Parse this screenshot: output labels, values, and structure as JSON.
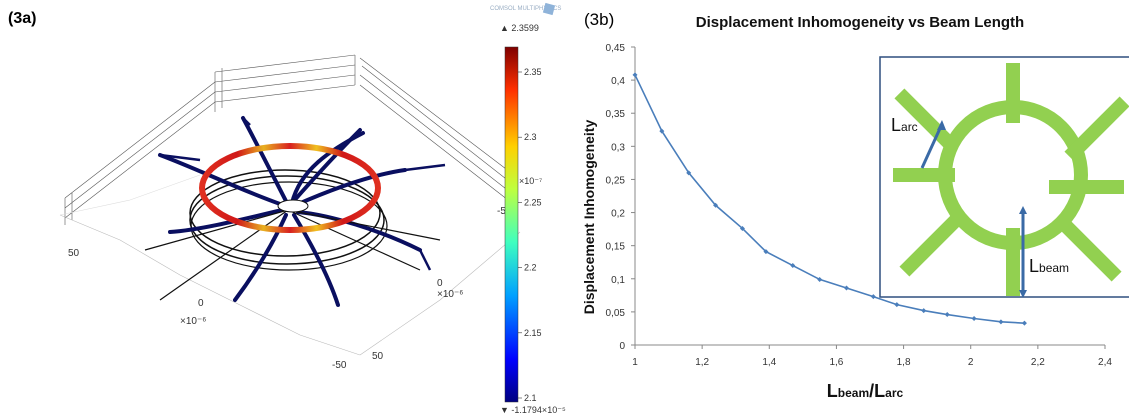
{
  "panel_a": {
    "label": "(3a)",
    "logo_text": "COMSOL MULTIPHYSICS",
    "colorbar": {
      "max_label": "▲ 2.3599",
      "min_label": "▼ -1.1794×10⁻⁵",
      "exponent_label": "×10⁻⁷",
      "ticks": [
        "2.35",
        "2.3",
        "2.25",
        "2.2",
        "2.15",
        "2.1"
      ]
    },
    "axis_ticks": {
      "left_50": "50",
      "center_0": "0",
      "center_unit": "×10⁻⁶",
      "bottom_neg50": "-50",
      "bottom_50": "50",
      "right_0": "0",
      "right_unit": "×10⁻⁶",
      "right_neg50": "-50"
    }
  },
  "panel_b": {
    "label": "(3b)",
    "inset": {
      "l_arc_main": "L",
      "l_arc_sub": "arc",
      "l_beam_main": "L",
      "l_beam_sub": "beam",
      "color": "#92d050"
    }
  },
  "chart_data": {
    "type": "line",
    "title": "Displacement Inhomogeneity vs Beam Length",
    "ylabel": "Displacement  Inhomogeneity",
    "xlabel_main_1": "L",
    "xlabel_sub_1": "beam",
    "xlabel_mid": "/L",
    "xlabel_sub_2": "arc",
    "xlim": [
      1,
      2.4
    ],
    "ylim": [
      0,
      0.45
    ],
    "x_ticks": [
      "1",
      "1,2",
      "1,4",
      "1,6",
      "1,8",
      "2",
      "2,2",
      "2,4"
    ],
    "y_ticks": [
      "0",
      "0,05",
      "0,1",
      "0,15",
      "0,2",
      "0,25",
      "0,3",
      "0,35",
      "0,4",
      "0,45"
    ],
    "grid": false,
    "line_color": "#4a7ebb",
    "series": [
      {
        "x": [
          1.0,
          1.08,
          1.16,
          1.24,
          1.32,
          1.39,
          1.47,
          1.55,
          1.63,
          1.71,
          1.78,
          1.86,
          1.93,
          2.01,
          2.09,
          2.16
        ],
        "values": [
          0.408,
          0.323,
          0.26,
          0.211,
          0.176,
          0.141,
          0.12,
          0.099,
          0.086,
          0.073,
          0.061,
          0.052,
          0.046,
          0.04,
          0.035,
          0.033
        ]
      }
    ]
  }
}
